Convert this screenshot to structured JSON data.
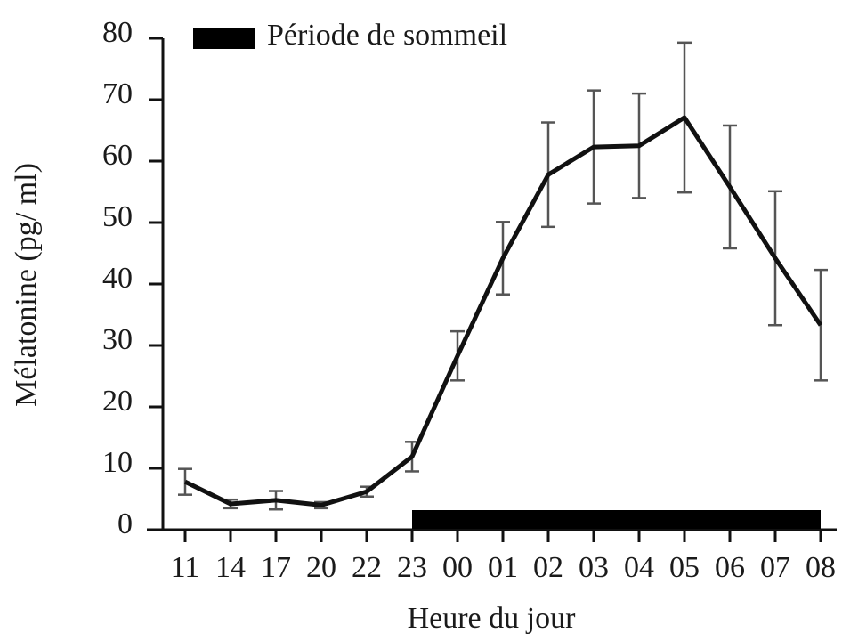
{
  "chart_data": {
    "type": "line",
    "xlabel": "Heure du jour",
    "ylabel": "Mélatonine (pg/ ml)",
    "categories": [
      "11",
      "14",
      "17",
      "20",
      "22",
      "23",
      "00",
      "01",
      "02",
      "03",
      "04",
      "05",
      "06",
      "07",
      "08"
    ],
    "series": [
      {
        "name": "Mélatonine",
        "color": "#111111",
        "values": [
          7.8,
          4.2,
          4.8,
          4.0,
          6.2,
          11.9,
          28.3,
          44.2,
          57.8,
          62.3,
          62.5,
          67.1,
          55.8,
          44.2,
          33.3
        ],
        "errors": [
          2.1,
          0.7,
          1.5,
          0.5,
          0.8,
          2.4,
          4.0,
          5.9,
          8.5,
          9.2,
          8.5,
          12.2,
          10.0,
          10.9,
          9.0
        ]
      }
    ],
    "ylim": [
      0,
      80
    ],
    "yticks": [
      0,
      10,
      20,
      30,
      40,
      50,
      60,
      70,
      80
    ],
    "sleep_period": {
      "name": "Période de sommeil",
      "start": "23",
      "end": "08",
      "color": "#000000"
    },
    "legend": "upper left",
    "grid": false
  }
}
